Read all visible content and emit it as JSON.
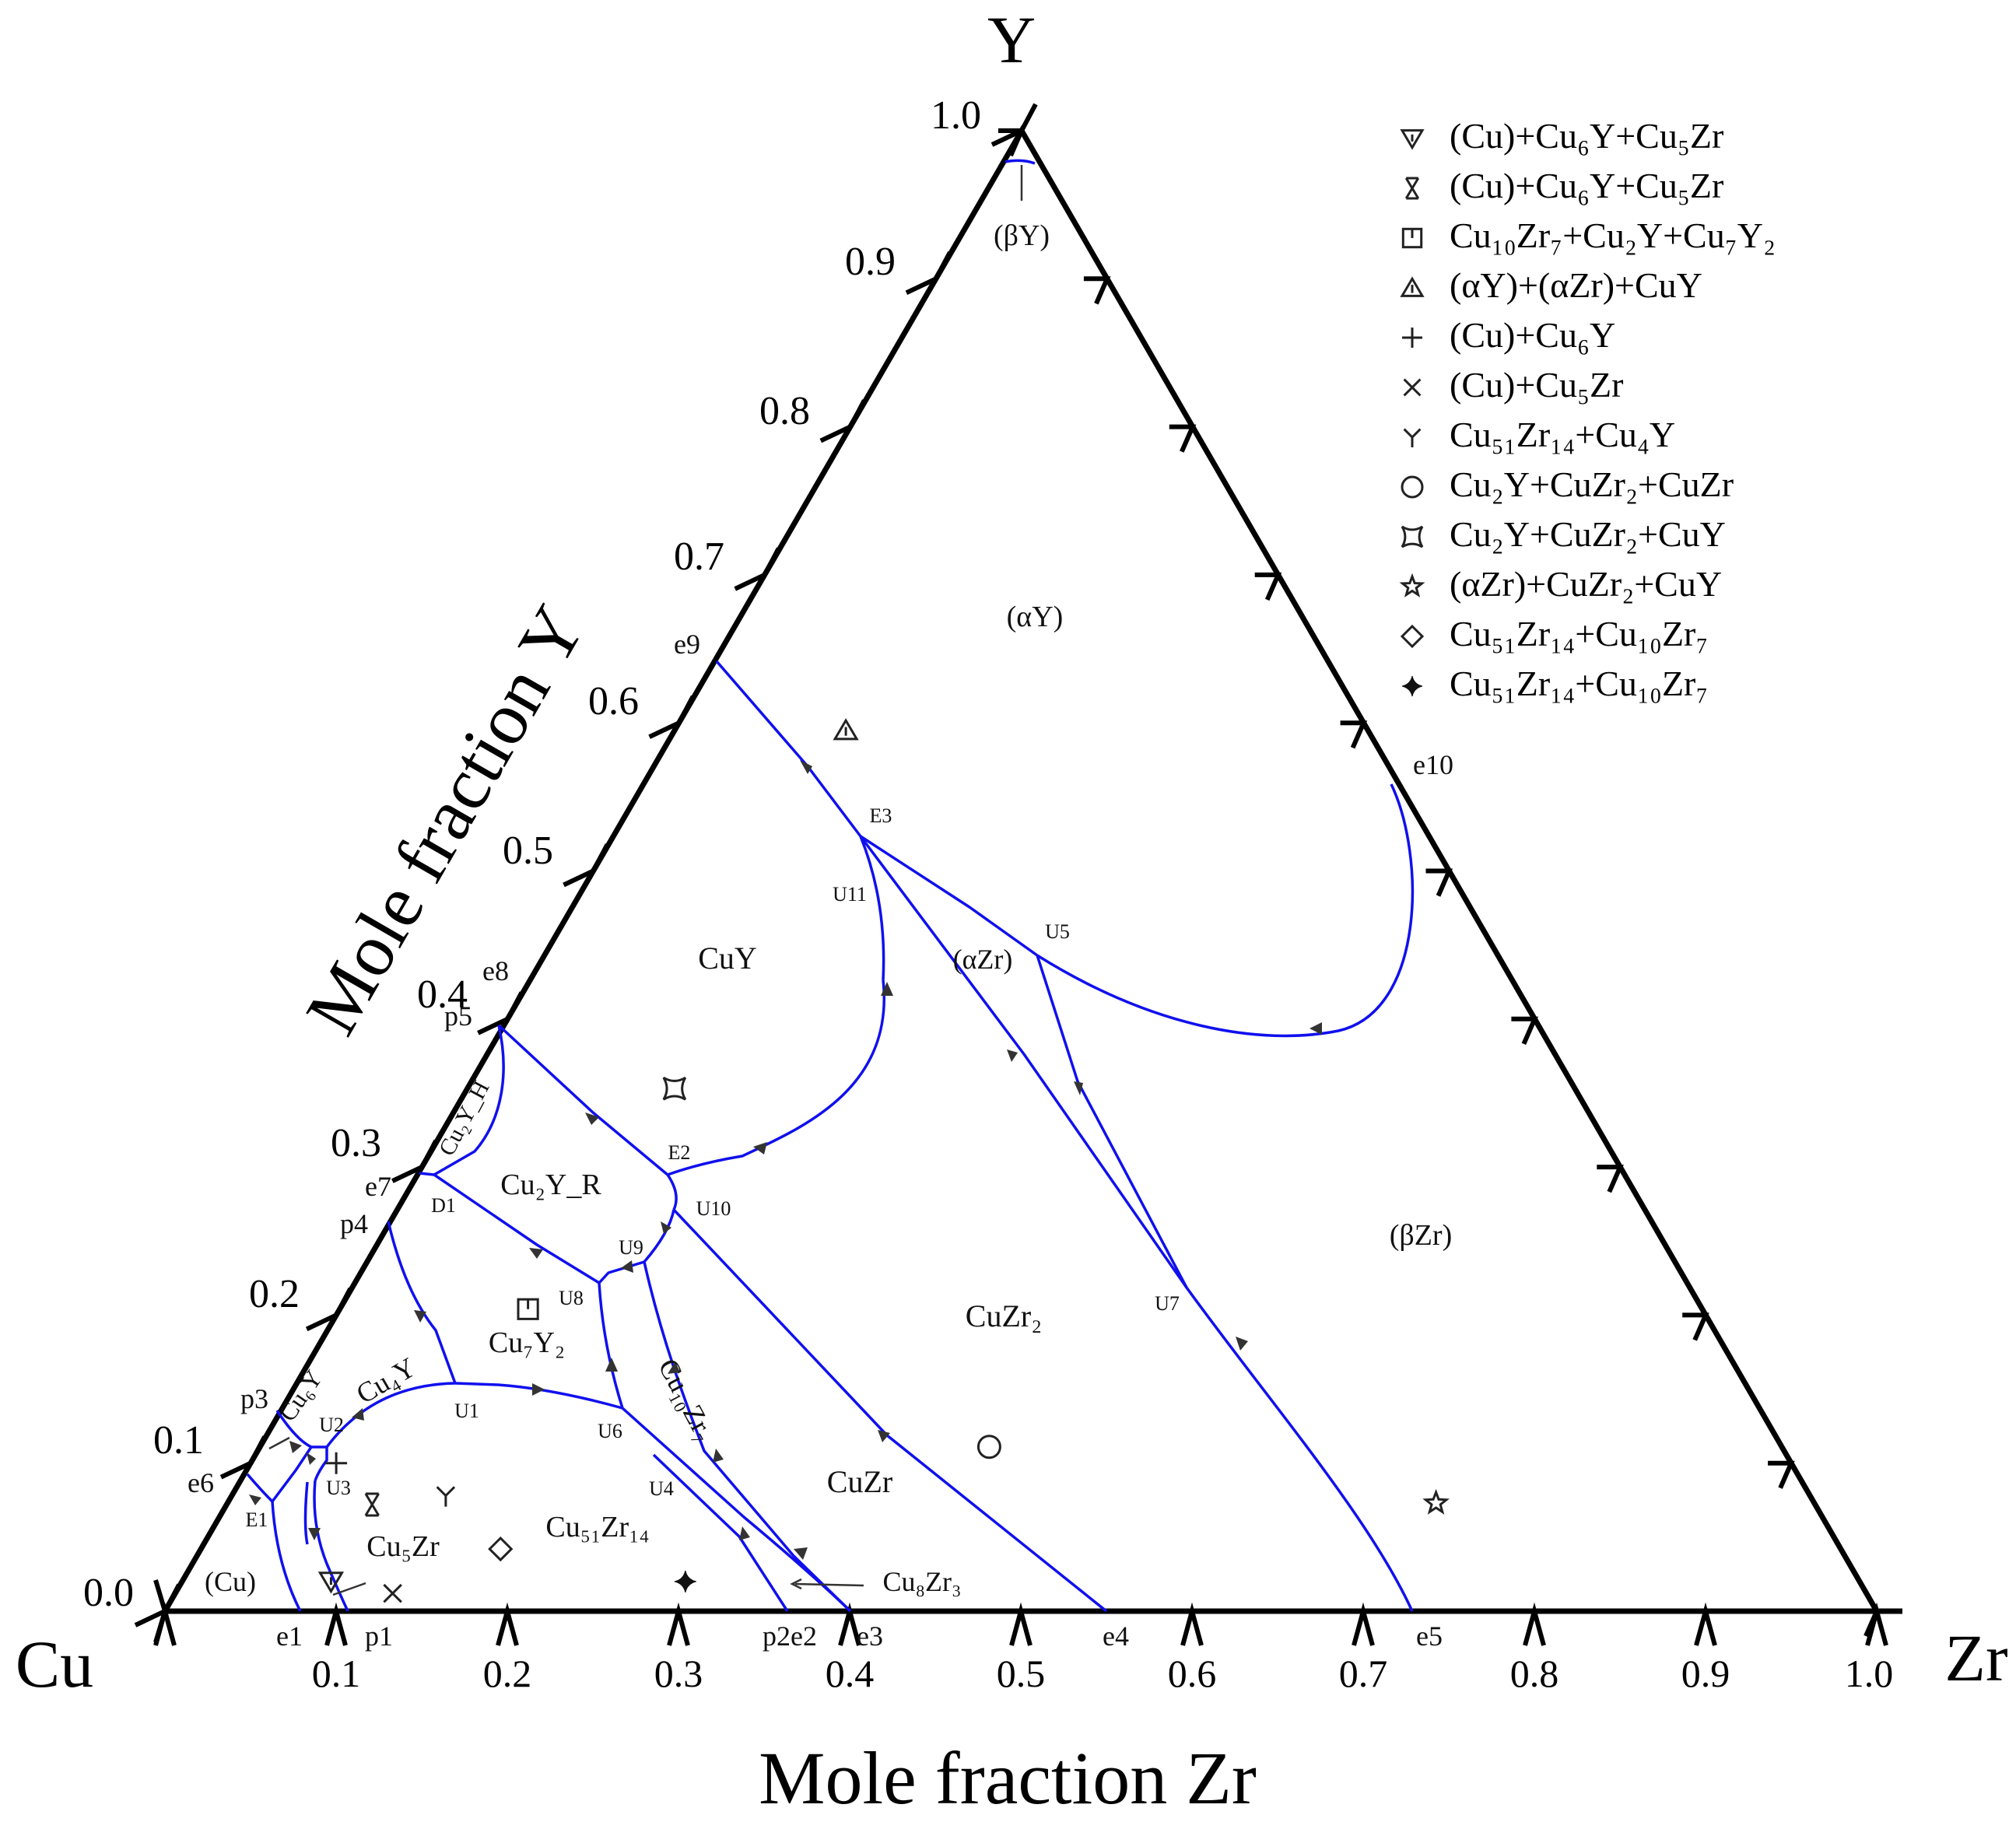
{
  "chart_data": {
    "type": "ternary-phase-diagram",
    "corners": {
      "left": "Cu",
      "top": "Y",
      "right": "Zr"
    },
    "axis_titles": {
      "left": "Mole fraction Y",
      "bottom": "Mole fraction Zr"
    },
    "ticks": {
      "bottom": [
        "0.1",
        "0.2",
        "0.3",
        "0.4",
        "0.5",
        "0.6",
        "0.7",
        "0.8",
        "0.9",
        "1.0"
      ],
      "left": [
        "0.0",
        "0.1",
        "0.2",
        "0.3",
        "0.4",
        "0.5",
        "0.6",
        "0.7",
        "0.8",
        "0.9",
        "1.0"
      ]
    },
    "regions": {
      "beta_y": "(βY)",
      "alpha_y": "(αY)",
      "cuy": "CuY",
      "alpha_zr": "(αZr)",
      "beta_zr": "(βZr)",
      "cuzr2": "CuZr₂",
      "cuzr": "CuZr",
      "cu2y_r": "Cu₂Y_R",
      "cu2y_h": "Cu₂Y_H",
      "cu7y2": "Cu₇Y₂",
      "cu4y": "Cu₄Y",
      "cu6y": "Cu₆Y",
      "cu10zr7": "Cu₁₀Zr₇",
      "cu51zr14": "Cu₅₁Zr₁₄",
      "cu5zr": "Cu₅Zr",
      "cu": "(Cu)",
      "cu8zr3": "Cu₈Zr₃"
    },
    "invariant_points": {
      "e1": "e1",
      "p1": "p1",
      "p2e2": "p2e2",
      "e3": "e3",
      "e4": "e4",
      "e5": "e5",
      "e6": "e6",
      "e7": "e7",
      "e8": "e8",
      "e9": "e9",
      "e10": "e10",
      "p3": "p3",
      "p4": "p4",
      "p5": "p5",
      "E1": "E1",
      "E2": "E2",
      "E3": "E3",
      "D1": "D1",
      "U1": "U1",
      "U2": "U2",
      "U3": "U3",
      "U4": "U4",
      "U5": "U5",
      "U6": "U6",
      "U7": "U7",
      "U8": "U8",
      "U9": "U9",
      "U10": "U10",
      "U11": "U11"
    },
    "legend": [
      {
        "symbol": "triangle-down",
        "label": "(Cu)+Cu₆Y+Cu₅Zr"
      },
      {
        "symbol": "bowtie",
        "label": "(Cu)+Cu₆Y+Cu₅Zr"
      },
      {
        "symbol": "square-tick",
        "label": "Cu₁₀Zr₇+Cu₂Y+Cu₇Y₂"
      },
      {
        "symbol": "triangle-up",
        "label": "(αY)+(αZr)+CuY"
      },
      {
        "symbol": "plus",
        "label": "(Cu)+Cu₆Y"
      },
      {
        "symbol": "cross",
        "label": "(Cu)+Cu₅Zr"
      },
      {
        "symbol": "tri-y",
        "label": "Cu₅₁Zr₁₄+Cu₄Y"
      },
      {
        "symbol": "circle",
        "label": "Cu₂Y+CuZr₂+CuZr"
      },
      {
        "symbol": "square-concave",
        "label": "Cu₂Y+CuZr₂+CuY"
      },
      {
        "symbol": "star",
        "label": "(αZr)+CuZr₂+CuY"
      },
      {
        "symbol": "diamond",
        "label": "Cu₅₁Zr₁₄+Cu₁₀Zr₇"
      },
      {
        "symbol": "star4",
        "label": "Cu₅₁Zr₁₄+Cu₁₀Zr₇"
      }
    ],
    "sample_points": [
      {
        "symbol": "triangle-down",
        "zr": 0.087,
        "y": 0.02
      },
      {
        "symbol": "bowtie",
        "zr": 0.085,
        "y": 0.072
      },
      {
        "symbol": "square-tick",
        "zr": 0.11,
        "y": 0.204
      },
      {
        "symbol": "triangle-up",
        "zr": 0.1,
        "y": 0.595
      },
      {
        "symbol": "plus",
        "zr": 0.05,
        "y": 0.1
      },
      {
        "symbol": "cross",
        "zr": 0.127,
        "y": 0.012
      },
      {
        "symbol": "tri-y",
        "zr": 0.125,
        "y": 0.078
      },
      {
        "symbol": "circle",
        "zr": 0.426,
        "y": 0.111
      },
      {
        "symbol": "square-concave",
        "zr": 0.121,
        "y": 0.353
      },
      {
        "symbol": "star",
        "zr": 0.706,
        "y": 0.073
      },
      {
        "symbol": "diamond",
        "zr": 0.175,
        "y": 0.042
      },
      {
        "symbol": "star4",
        "zr": 0.294,
        "y": 0.02
      }
    ]
  }
}
